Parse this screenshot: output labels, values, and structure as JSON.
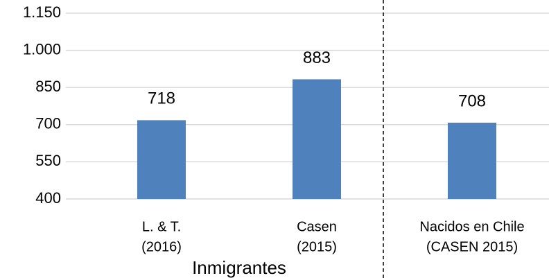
{
  "chart_data": {
    "type": "bar",
    "categories": [
      [
        "L. & T.",
        "(2016)"
      ],
      [
        "Casen",
        "(2015)"
      ],
      [
        "Nacidos en Chile",
        "(CASEN 2015)"
      ]
    ],
    "values": [
      718,
      883,
      708
    ],
    "color": "#4f81bd",
    "group_label": "Inmigrantes",
    "ylim": [
      400,
      1150
    ],
    "yticks": [
      400,
      550,
      700,
      850,
      {
        "value": 1000,
        "label": "1.000"
      },
      {
        "value": 1150,
        "label": "1.150"
      }
    ],
    "grid": true
  }
}
